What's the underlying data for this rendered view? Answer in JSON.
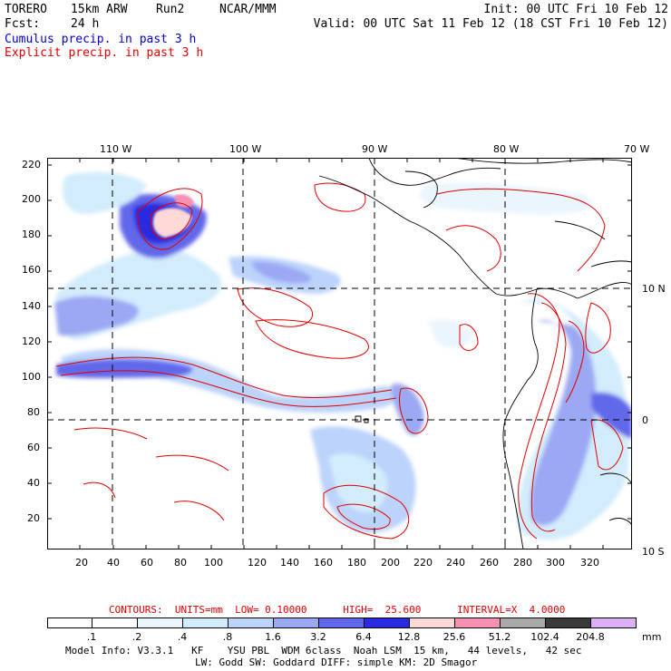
{
  "header": {
    "model": "TORERO",
    "resolution": "15km ARW",
    "run": "Run2",
    "org": "NCAR/MMM",
    "init": "Init: 00 UTC Fri 10 Feb 12",
    "fcst_label": "Fcst:",
    "fcst_value": "24 h",
    "valid": "Valid: 00 UTC Sat 11 Feb 12 (18 CST Fri 10 Feb 12)",
    "field1": "Cumulus precip. in past 3 h",
    "field2": "Explicit precip. in past 3 h"
  },
  "colors": {
    "field1": "#0000c8",
    "field2": "#e00000",
    "coast": "#000000",
    "contour": "#e00000"
  },
  "map": {
    "lon_labels": [
      "110 W",
      "100 W",
      "90 W",
      "80 W",
      "70 W"
    ],
    "lat_labels": [
      "10 N",
      "0",
      "10 S"
    ],
    "x_ticks": [
      "20",
      "40",
      "60",
      "80",
      "100",
      "120",
      "140",
      "160",
      "180",
      "200",
      "220",
      "240",
      "260",
      "280",
      "300",
      "320"
    ],
    "y_ticks": [
      "220",
      "200",
      "180",
      "160",
      "140",
      "120",
      "100",
      "80",
      "60",
      "40",
      "20"
    ]
  },
  "contours_info": {
    "text": "CONTOURS:  UNITS=mm  LOW= 0.10000      HIGH=  25.600      INTERVAL=X  4.0000"
  },
  "legend": {
    "unit": "mm",
    "levels": [
      ".1",
      ".2",
      ".4",
      ".8",
      "1.6",
      "3.2",
      "6.4",
      "12.8",
      "25.6",
      "51.2",
      "102.4",
      "204.8"
    ],
    "colors": [
      "#ffffff",
      "#ffffff",
      "#eaf5fe",
      "#d2ecfc",
      "#bcd3fb",
      "#9ba8f3",
      "#6268ea",
      "#2a2ae0",
      "#ffd8d8",
      "#f592b4",
      "#a8a8a8",
      "#3a3a3a",
      "#dcb0f5"
    ]
  },
  "footer": {
    "line1": "Model Info: V3.3.1   KF    YSU PBL  WDM 6class  Noah LSM  15 km,   44 levels,   42 sec",
    "line2": "LW: Godd SW: Goddard DIFF: simple KM: 2D Smagor"
  }
}
